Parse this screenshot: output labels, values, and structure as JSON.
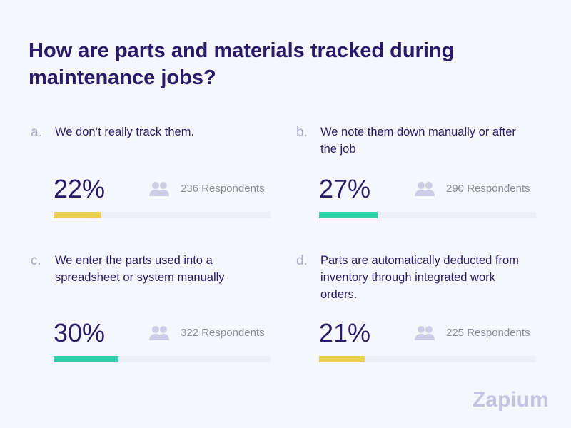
{
  "header": {
    "title": "How are parts and materials tracked during maintenance jobs?"
  },
  "options": [
    {
      "letter": "a.",
      "text": "We don’t really track them.",
      "percent": {
        "value": 22,
        "label": "22%"
      },
      "respondents": "236 Respondents",
      "color": "#e8d24e"
    },
    {
      "letter": "b.",
      "text": "We note them down manually or after the job",
      "percent": {
        "value": 27,
        "label": "27%"
      },
      "respondents": "290 Respondents",
      "color": "#2ecfa9"
    },
    {
      "letter": "c.",
      "text": "We enter the parts used into a spreadsheet or system manually",
      "percent": {
        "value": 30,
        "label": "30%"
      },
      "respondents": "322 Respondents",
      "color": "#2ecfa9"
    },
    {
      "letter": "d.",
      "text": "Parts are automatically deducted from inventory through integrated work orders.",
      "percent": {
        "value": 21,
        "label": "21%"
      },
      "respondents": "225 Respondents",
      "color": "#e8d24e"
    }
  ],
  "brand": "Zapium"
}
